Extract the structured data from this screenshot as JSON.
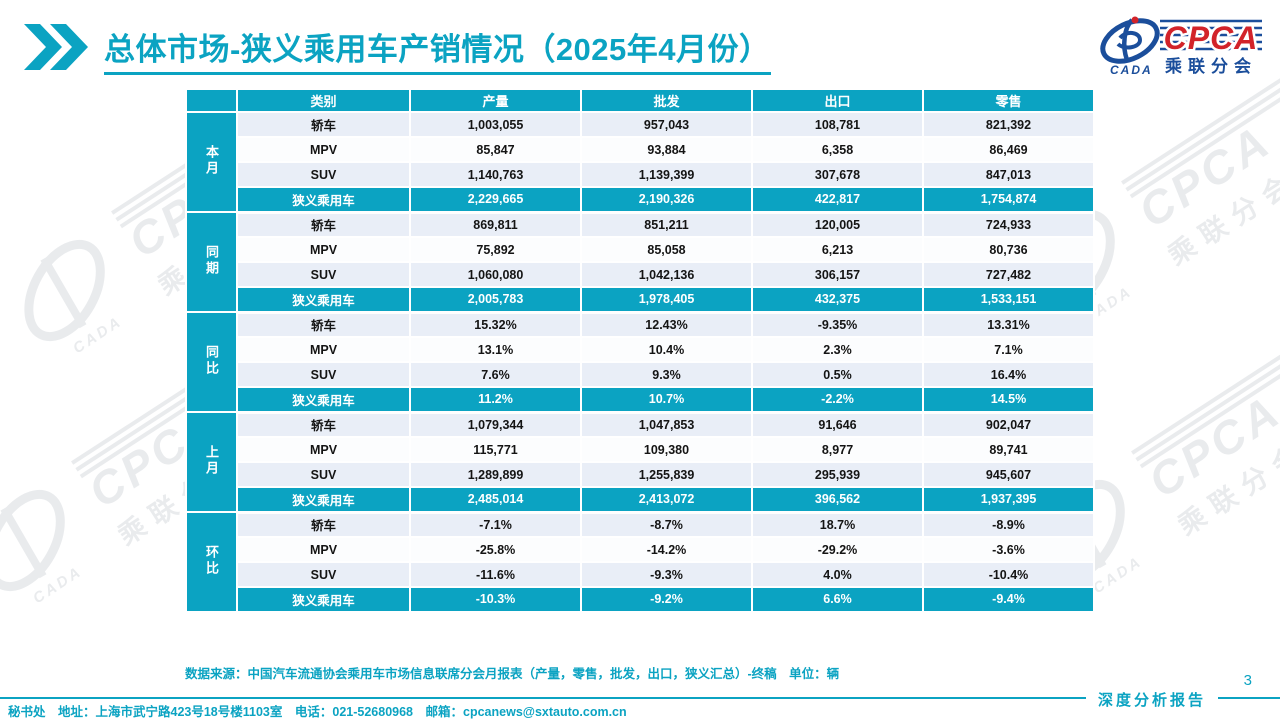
{
  "slide": {
    "title": "总体市场-狭义乘用车产销情况（2025年4月份）",
    "source_note": "数据来源：中国汽车流通协会乘用车市场信息联席分会月报表（产量，零售，批发，出口，狭义汇总）-终稿　单位：辆",
    "footer": "秘书处　地址：上海市武宁路423号18号楼1103室　电话：021-52680968　邮箱：cpcanews@sxtauto.com.cn",
    "report_label": "深度分析报告",
    "page_number": "3"
  },
  "logo": {
    "org_abbr": "CPCA",
    "org_cn": "乘联分会",
    "swoosh_text": "CADA"
  },
  "watermark": {
    "cpca": "CPCA",
    "cn": "乘联分会",
    "cada": "CADA"
  },
  "colors": {
    "accent": "#0ba3c2",
    "row_alt": "#e9eef7",
    "logo_blue": "#1b4e9b",
    "logo_red": "#d2232a"
  },
  "table": {
    "columns": [
      "类别",
      "产量",
      "批发",
      "出口",
      "零售"
    ],
    "groups": [
      {
        "label": "本月",
        "rows": [
          [
            "轿车",
            "1,003,055",
            "957,043",
            "108,781",
            "821,392"
          ],
          [
            "MPV",
            "85,847",
            "93,884",
            "6,358",
            "86,469"
          ],
          [
            "SUV",
            "1,140,763",
            "1,139,399",
            "307,678",
            "847,013"
          ],
          [
            "狭义乘用车",
            "2,229,665",
            "2,190,326",
            "422,817",
            "1,754,874"
          ]
        ]
      },
      {
        "label": "同期",
        "rows": [
          [
            "轿车",
            "869,811",
            "851,211",
            "120,005",
            "724,933"
          ],
          [
            "MPV",
            "75,892",
            "85,058",
            "6,213",
            "80,736"
          ],
          [
            "SUV",
            "1,060,080",
            "1,042,136",
            "306,157",
            "727,482"
          ],
          [
            "狭义乘用车",
            "2,005,783",
            "1,978,405",
            "432,375",
            "1,533,151"
          ]
        ]
      },
      {
        "label": "同比",
        "rows": [
          [
            "轿车",
            "15.32%",
            "12.43%",
            "-9.35%",
            "13.31%"
          ],
          [
            "MPV",
            "13.1%",
            "10.4%",
            "2.3%",
            "7.1%"
          ],
          [
            "SUV",
            "7.6%",
            "9.3%",
            "0.5%",
            "16.4%"
          ],
          [
            "狭义乘用车",
            "11.2%",
            "10.7%",
            "-2.2%",
            "14.5%"
          ]
        ]
      },
      {
        "label": "上月",
        "rows": [
          [
            "轿车",
            "1,079,344",
            "1,047,853",
            "91,646",
            "902,047"
          ],
          [
            "MPV",
            "115,771",
            "109,380",
            "8,977",
            "89,741"
          ],
          [
            "SUV",
            "1,289,899",
            "1,255,839",
            "295,939",
            "945,607"
          ],
          [
            "狭义乘用车",
            "2,485,014",
            "2,413,072",
            "396,562",
            "1,937,395"
          ]
        ]
      },
      {
        "label": "环比",
        "rows": [
          [
            "轿车",
            "-7.1%",
            "-8.7%",
            "18.7%",
            "-8.9%"
          ],
          [
            "MPV",
            "-25.8%",
            "-14.2%",
            "-29.2%",
            "-3.6%"
          ],
          [
            "SUV",
            "-11.6%",
            "-9.3%",
            "4.0%",
            "-10.4%"
          ],
          [
            "狭义乘用车",
            "-10.3%",
            "-9.2%",
            "6.6%",
            "-9.4%"
          ]
        ]
      }
    ]
  }
}
